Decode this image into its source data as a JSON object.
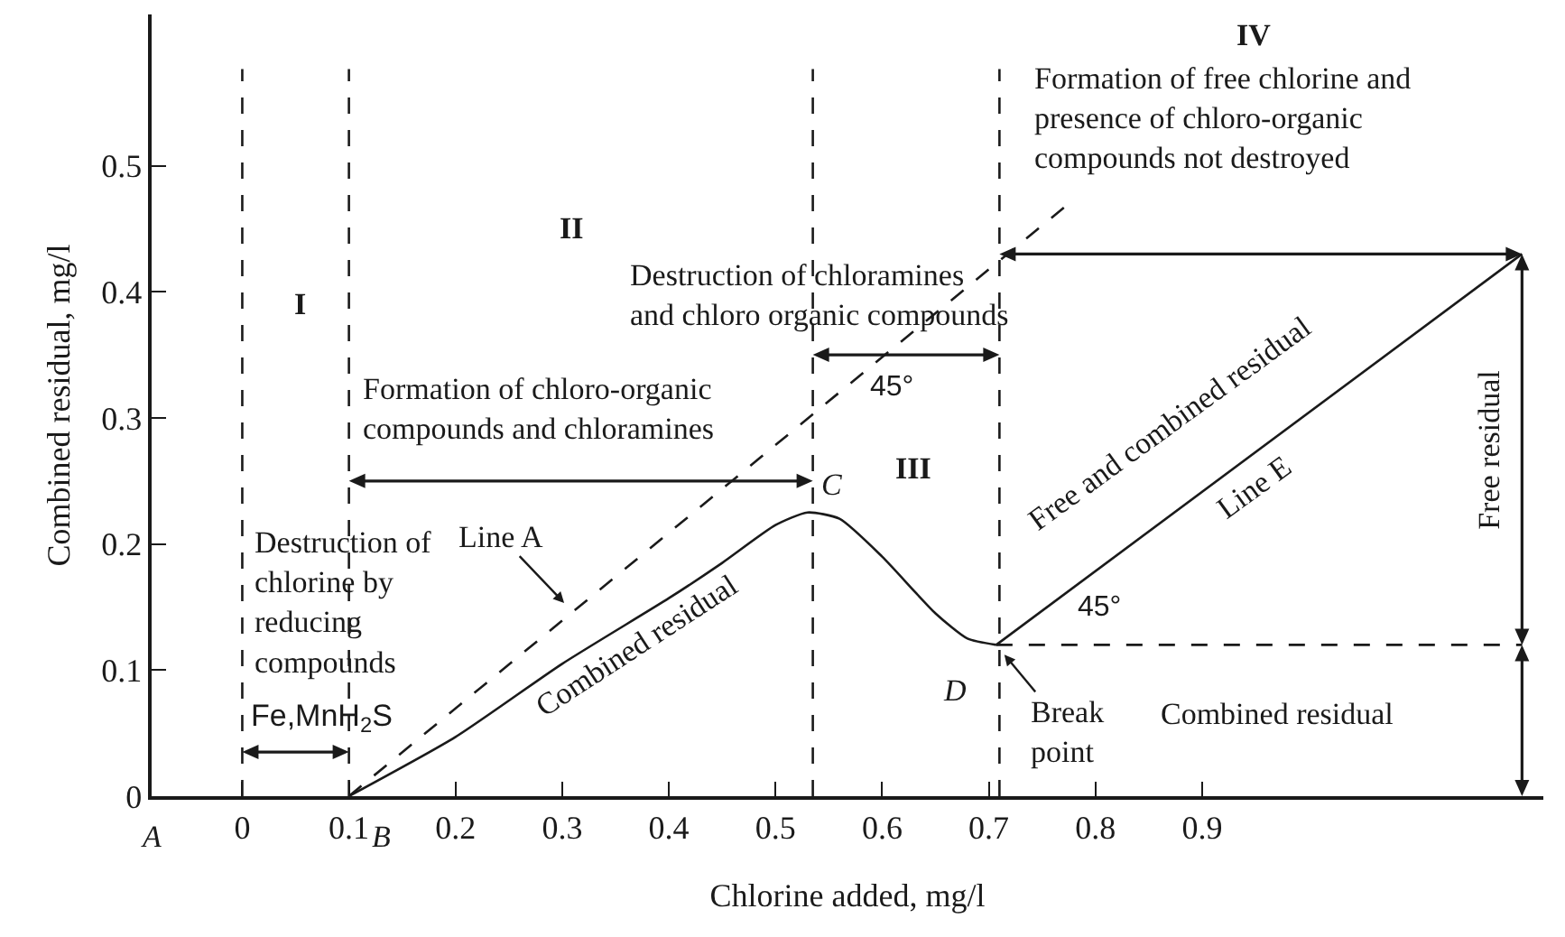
{
  "chart_data": {
    "type": "line",
    "xlabel": "Chlorine added, mg/l",
    "ylabel": "Combined residual, mg/l",
    "xlim": [
      -0.085,
      1.22
    ],
    "ylim": [
      0,
      0.62
    ],
    "xticks": [
      0,
      0.1,
      0.2,
      0.3,
      0.4,
      0.5,
      0.6,
      0.7,
      0.8,
      0.9
    ],
    "yticks": [
      0,
      0.1,
      0.2,
      0.3,
      0.4,
      0.5
    ],
    "grid": false,
    "marker": "none",
    "tick_labels": "xy",
    "series": [
      {
        "color": "#1a1a1a",
        "line_style": "solid",
        "x": [
          0.1,
          0.2,
          0.3,
          0.4,
          0.45,
          0.5,
          0.53,
          0.56,
          0.6,
          0.65,
          0.68,
          0.707
        ],
        "values": [
          0,
          0.047,
          0.105,
          0.157,
          0.185,
          0.215,
          0.225,
          0.22,
          0.19,
          0.145,
          0.125,
          0.12
        ]
      },
      {
        "color": "#1a1a1a",
        "line_style": "dashed",
        "x": [
          0.1,
          0.775
        ],
        "values": [
          0,
          0.47
        ]
      },
      {
        "color": "#1a1a1a",
        "line_style": "solid",
        "x": [
          0.707,
          1.2
        ],
        "values": [
          0.12,
          0.43
        ]
      },
      {
        "color": "#1a1a1a",
        "line_style": "dashed",
        "x": [
          0.707,
          1.2
        ],
        "values": [
          0.12,
          0.12
        ]
      }
    ],
    "ref_lines": [
      {
        "axis": "x",
        "value": 0,
        "line_style": "dashed",
        "color": "#1a1a1a"
      },
      {
        "axis": "x",
        "value": 0.1,
        "line_style": "dashed",
        "color": "#1a1a1a"
      },
      {
        "axis": "x",
        "value": 0.535,
        "line_style": "dashed",
        "color": "#1a1a1a"
      },
      {
        "axis": "x",
        "value": 0.71,
        "line_style": "dashed",
        "color": "#1a1a1a"
      }
    ],
    "annotations": [
      "I",
      "II",
      "III",
      "IV",
      "Destruction of\nchlorine by\nreducing\ncompounds",
      "Fe,MnH$_{2}$S",
      "Formation of chloro-organic\ncompounds and chloramines",
      "Destruction of chloramines\nand chloro organic compounds",
      "Formation of free chlorine and\npresence of chloro-organic\ncompounds not destroyed",
      "45°",
      "45°",
      {
        "text": "C",
        "x": 0.53,
        "y": 0.225
      },
      {
        "text": "D",
        "x": 0.707,
        "y": 0.12
      },
      {
        "text": "Break\npoint",
        "x": 0.707,
        "y": 0.12
      },
      "Combined residual",
      "Free residual",
      "Combined residual",
      "Free and combined residual",
      "Line E",
      {
        "text": "Line A",
        "x": 0.31,
        "y": 0.146
      },
      "A",
      "B"
    ]
  }
}
